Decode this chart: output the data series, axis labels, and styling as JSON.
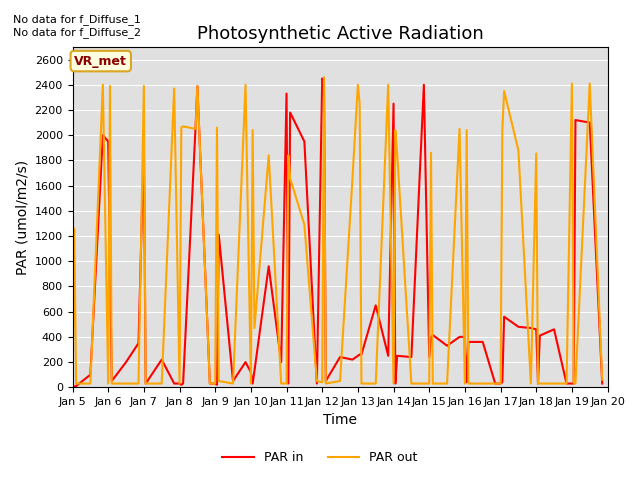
{
  "title": "Photosynthetic Active Radiation",
  "ylabel": "PAR (umol/m2/s)",
  "xlabel": "Time",
  "text_top_left": "No data for f_Diffuse_1\nNo data for f_Diffuse_2",
  "legend_label_vr": "VR_met",
  "legend_par_in": "PAR in",
  "legend_par_out": "PAR out",
  "color_par_in": "#FF0000",
  "color_par_out": "#FFA500",
  "background_color": "#E0E0E0",
  "ylim": [
    0,
    2700
  ],
  "yticks": [
    0,
    200,
    400,
    600,
    800,
    1000,
    1200,
    1400,
    1600,
    1800,
    2000,
    2200,
    2400,
    2600
  ],
  "par_in_x": [
    5.0,
    5.1,
    5.5,
    5.85,
    6.0,
    6.1,
    6.5,
    6.85,
    7.0,
    7.05,
    7.1,
    7.5,
    7.85,
    8.0,
    8.05,
    8.1,
    8.45,
    8.5,
    8.85,
    9.0,
    9.05,
    9.1,
    9.5,
    9.85,
    10.0,
    10.05,
    10.1,
    10.5,
    10.85,
    11.0,
    11.05,
    11.1,
    11.5,
    11.85,
    12.0,
    12.05,
    12.1,
    12.5,
    12.85,
    13.0,
    13.05,
    13.1,
    13.5,
    13.85,
    14.0,
    14.05,
    14.1,
    14.5,
    14.85,
    15.0,
    15.05,
    15.1,
    15.5,
    15.85,
    16.0,
    16.05,
    16.1,
    16.5,
    16.85,
    17.0,
    17.05,
    17.1,
    17.5,
    17.85,
    18.0,
    18.05,
    18.1,
    18.5,
    18.85,
    19.0,
    19.05,
    19.1,
    19.5,
    19.85
  ],
  "par_in_y": [
    5,
    10,
    100,
    2000,
    1950,
    50,
    200,
    350,
    1960,
    30,
    50,
    220,
    30,
    30,
    20,
    30,
    2070,
    2390,
    30,
    30,
    20,
    1210,
    50,
    200,
    120,
    30,
    130,
    960,
    200,
    2330,
    30,
    2180,
    1950,
    30,
    2450,
    2420,
    50,
    240,
    220,
    250,
    260,
    260,
    650,
    250,
    2250,
    30,
    250,
    240,
    2400,
    240,
    390,
    415,
    330,
    400,
    400,
    40,
    360,
    360,
    30,
    30,
    40,
    560,
    480,
    470,
    460,
    30,
    410,
    460,
    30,
    30,
    30,
    2120,
    2100,
    30
  ],
  "par_out_x": [
    5.0,
    5.05,
    5.1,
    5.5,
    5.85,
    6.0,
    6.05,
    6.1,
    6.5,
    6.85,
    7.0,
    7.05,
    7.1,
    7.5,
    7.85,
    8.0,
    8.05,
    8.1,
    8.45,
    8.5,
    8.85,
    9.0,
    9.05,
    9.1,
    9.5,
    9.85,
    10.0,
    10.05,
    10.1,
    10.5,
    10.85,
    11.0,
    11.05,
    11.1,
    11.5,
    11.85,
    12.0,
    12.05,
    12.1,
    12.5,
    12.85,
    13.0,
    13.05,
    13.1,
    13.5,
    13.85,
    14.0,
    14.05,
    14.1,
    14.5,
    14.85,
    15.0,
    15.05,
    15.1,
    15.5,
    15.85,
    16.0,
    16.05,
    16.1,
    16.5,
    16.85,
    17.0,
    17.05,
    17.1,
    17.5,
    17.85,
    18.0,
    18.05,
    18.1,
    18.5,
    18.85,
    19.0,
    19.05,
    19.1,
    19.5,
    19.85
  ],
  "par_out_y": [
    20,
    1260,
    30,
    30,
    2400,
    30,
    2390,
    30,
    30,
    30,
    2390,
    30,
    30,
    30,
    2370,
    30,
    2060,
    2070,
    2050,
    2390,
    30,
    30,
    2060,
    50,
    30,
    2400,
    30,
    2040,
    470,
    1840,
    30,
    30,
    1840,
    1660,
    1290,
    50,
    40,
    2460,
    30,
    50,
    1665,
    2400,
    2250,
    30,
    30,
    2400,
    30,
    2040,
    1860,
    30,
    30,
    30,
    1860,
    30,
    30,
    2050,
    30,
    2040,
    30,
    30,
    30,
    30,
    2040,
    2350,
    1880,
    30,
    1855,
    30,
    30,
    30,
    30,
    2410,
    30,
    30,
    2410,
    60
  ]
}
